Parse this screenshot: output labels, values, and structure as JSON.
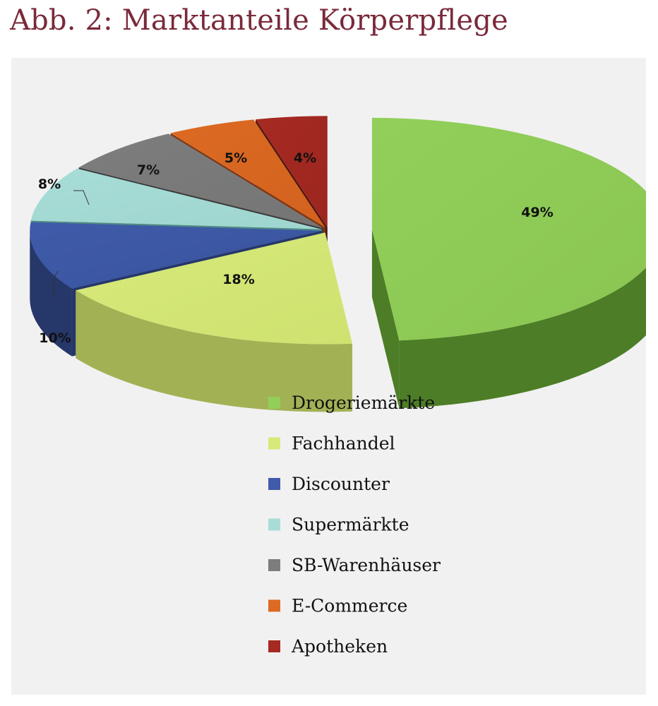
{
  "title": "Abb. 2: Marktanteile Körperpflege",
  "chart_data": {
    "type": "pie",
    "title": "Abb. 2: Marktanteile Körperpflege",
    "style": "3d-exploded",
    "legend_position": "bottom-right",
    "series": [
      {
        "name": "Drogeriemärkte",
        "value": 49,
        "label": "49%",
        "color": "#92cf5a",
        "side": "#4d7d26",
        "top2": "#8ac552"
      },
      {
        "name": "Fachhandel",
        "value": 18,
        "label": "18%",
        "color": "#d6e97a",
        "side": "#a3b155",
        "top2": "#cfe270"
      },
      {
        "name": "Discounter",
        "value": 10,
        "label": "10%",
        "color": "#3f5ba9",
        "side": "#26376a",
        "top2": "#3a539d"
      },
      {
        "name": "Supermärkte",
        "value": 8,
        "label": "8%",
        "color": "#a8ddd7",
        "side": "#4e8b86",
        "top2": "#9fd5cf"
      },
      {
        "name": "SB-Warenhäuser",
        "value": 7,
        "label": "7%",
        "color": "#7d7d7d",
        "side": "#3b3b3b",
        "top2": "#757575"
      },
      {
        "name": "E-Commerce",
        "value": 5,
        "label": "5%",
        "color": "#dc6a23",
        "side": "#7c3511",
        "top2": "#d2621e"
      },
      {
        "name": "Apotheken",
        "value": 4,
        "label": "4%",
        "color": "#a52a22",
        "side": "#4e140f",
        "top2": "#9c2620"
      }
    ]
  }
}
